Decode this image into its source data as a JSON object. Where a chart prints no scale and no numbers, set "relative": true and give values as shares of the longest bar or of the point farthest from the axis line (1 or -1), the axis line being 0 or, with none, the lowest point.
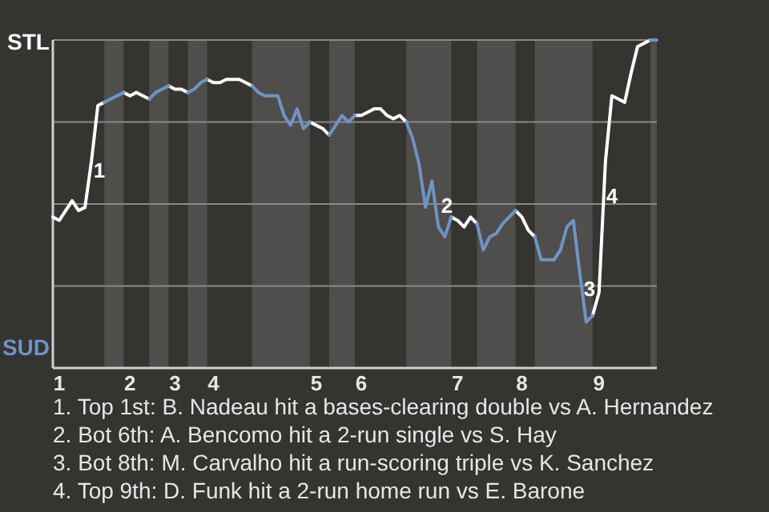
{
  "chart_data": {
    "type": "line",
    "relative": true,
    "marker": "none",
    "line_style": "solid",
    "categories": [
      null,
      "1",
      null,
      null,
      null,
      null,
      null,
      null,
      null,
      null,
      null,
      null,
      "2",
      null,
      null,
      null,
      null,
      null,
      null,
      "3",
      null,
      null,
      null,
      null,
      null,
      "4",
      null,
      null,
      null,
      null,
      null,
      null,
      null,
      null,
      null,
      null,
      null,
      null,
      null,
      null,
      null,
      "5",
      null,
      null,
      null,
      null,
      null,
      null,
      "6",
      null,
      null,
      null,
      null,
      null,
      null,
      null,
      null,
      null,
      null,
      null,
      null,
      null,
      null,
      "7",
      null,
      null,
      null,
      null,
      null,
      null,
      null,
      null,
      null,
      "8",
      null,
      null,
      null,
      null,
      null,
      null,
      null,
      null,
      null,
      null,
      null,
      "9",
      null,
      null,
      null,
      null,
      null,
      null,
      null,
      null,
      null
    ],
    "series": [
      {
        "color": "#ffffff",
        "values": [
          0.46,
          0.45,
          0.48,
          0.51,
          0.48,
          0.49,
          0.63,
          0.8,
          0.81,
          null,
          null,
          0.84,
          0.83,
          0.84,
          0.83,
          0.82,
          null,
          null,
          0.86,
          0.85,
          0.85,
          0.84,
          null,
          null,
          0.88,
          0.87,
          0.87,
          0.88,
          0.88,
          0.88,
          0.87,
          0.86,
          null,
          null,
          null,
          null,
          null,
          null,
          null,
          null,
          0.75,
          0.74,
          0.73,
          0.71,
          null,
          null,
          null,
          0.77,
          0.77,
          0.78,
          0.79,
          0.79,
          0.77,
          0.76,
          0.77,
          0.75,
          null,
          null,
          null,
          null,
          null,
          null,
          0.46,
          0.45,
          0.43,
          0.46,
          0.44,
          null,
          null,
          null,
          null,
          null,
          0.48,
          0.46,
          0.42,
          0.4,
          null,
          null,
          null,
          null,
          null,
          null,
          null,
          null,
          0.16,
          0.23,
          0.63,
          0.83,
          0.82,
          0.81,
          0.9,
          0.98,
          0.99,
          1,
          null
        ]
      },
      {
        "color": "#6f93c4",
        "values": [
          null,
          null,
          null,
          null,
          null,
          null,
          null,
          null,
          0.81,
          0.82,
          0.83,
          0.84,
          null,
          null,
          null,
          0.82,
          0.84,
          0.85,
          0.86,
          null,
          null,
          0.84,
          0.85,
          0.87,
          0.88,
          null,
          null,
          null,
          null,
          null,
          null,
          0.86,
          0.84,
          0.83,
          0.83,
          0.83,
          0.77,
          0.74,
          0.79,
          0.73,
          0.75,
          null,
          null,
          0.71,
          0.74,
          0.77,
          0.75,
          0.77,
          null,
          null,
          null,
          null,
          null,
          null,
          null,
          0.75,
          0.7,
          0.62,
          0.49,
          0.57,
          0.43,
          0.4,
          0.46,
          null,
          null,
          null,
          0.44,
          0.36,
          0.4,
          0.41,
          0.44,
          0.46,
          0.48,
          null,
          null,
          0.4,
          0.33,
          0.33,
          0.33,
          0.36,
          0.43,
          0.45,
          0.29,
          0.14,
          0.16,
          null,
          null,
          null,
          null,
          null,
          null,
          null,
          null,
          1,
          1
        ]
      }
    ],
    "ref_lines": [
      {
        "axis": "y",
        "value": 0.25,
        "color": "#8a8986"
      },
      {
        "axis": "y",
        "value": 0.5,
        "color": "#8a8986"
      },
      {
        "axis": "y",
        "value": 0.75,
        "color": "#8a8986"
      },
      {
        "axis": "y",
        "value": 1,
        "color": "#8a8986"
      }
    ],
    "annotations": [
      "1",
      "2",
      "3",
      "4",
      "STL",
      "SUD",
      "1. Top 1st: B. Nadeau hit a bases-clearing double vs A. Hernandez",
      "2. Bot 6th: A. Bencomo hit a 2-run single vs S. Hay",
      "3. Bot 8th: M. Carvalho hit a run-scoring triple vs K. Sanchez",
      "4. Top 9th: D. Funk hit a 2-run home run vs E. Barone"
    ]
  }
}
